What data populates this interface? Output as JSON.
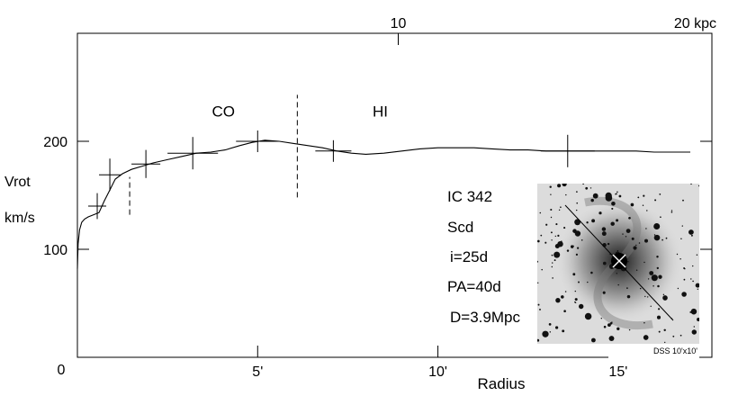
{
  "chart_data": {
    "type": "line",
    "xlabel": "Radius",
    "ylabel_lines": [
      "Vrot",
      "km/s"
    ],
    "origin_label": "0",
    "xlim": [
      0,
      17.6
    ],
    "ylim": [
      0,
      300
    ],
    "x_ticks": [
      {
        "value": 5,
        "label": "5'"
      },
      {
        "value": 10,
        "label": "10'"
      },
      {
        "value": 15,
        "label": "15'"
      }
    ],
    "y_ticks": [
      {
        "value": 100,
        "label": "100"
      },
      {
        "value": 200,
        "label": "200"
      }
    ],
    "top_axis_ticks": [
      {
        "value": 8.9,
        "label": "10"
      },
      {
        "value": 17.6,
        "label": "20 kpc"
      }
    ],
    "series": [
      {
        "x": [
          0.0,
          0.02,
          0.06,
          0.12,
          0.2,
          0.3,
          0.45,
          0.6,
          0.75,
          0.9,
          1.05,
          1.25,
          1.5,
          1.8,
          2.1,
          2.5,
          2.9,
          3.3,
          3.7,
          4.1,
          4.5,
          4.85,
          5.2,
          5.6,
          6.0,
          6.4,
          6.8,
          7.2,
          7.6,
          8.0,
          8.5,
          9.0,
          9.5,
          10.0,
          10.5,
          11.0,
          11.5,
          12.0,
          12.5,
          13.0,
          13.5,
          14.0,
          14.5,
          15.0,
          15.5,
          16.0,
          16.5,
          17.0
        ],
        "y": [
          82,
          105,
          118,
          125,
          128,
          130,
          132,
          134,
          145,
          155,
          165,
          170,
          174,
          177,
          180,
          183,
          186,
          189,
          190,
          192,
          196,
          199,
          201,
          200,
          198,
          196,
          194,
          191,
          189,
          188,
          189,
          191,
          193,
          194,
          194,
          194,
          193,
          192,
          192,
          191,
          191,
          191,
          191,
          191,
          191,
          190,
          190,
          190
        ]
      }
    ],
    "error_bars": [
      {
        "x": 0.55,
        "y": 140,
        "xerr": 0.25,
        "yerr": 12
      },
      {
        "x": 0.9,
        "y": 169,
        "xerr": 0.3,
        "yerr": 15
      },
      {
        "x": 1.9,
        "y": 179,
        "xerr": 0.4,
        "yerr": 13
      },
      {
        "x": 3.2,
        "y": 189,
        "xerr": 0.7,
        "yerr": 15
      },
      {
        "x": 5.0,
        "y": 200,
        "xerr": 0.6,
        "yerr": 10
      },
      {
        "x": 7.1,
        "y": 191,
        "xerr": 0.5,
        "yerr": 10
      },
      {
        "x": 13.6,
        "y": 191,
        "xerr": 0.75,
        "yerr": 15
      }
    ],
    "dashed_lines": [
      {
        "x": 1.45,
        "y0": 132,
        "y1": 167
      },
      {
        "x": 6.1,
        "y0": 148,
        "y1": 243
      }
    ],
    "annotations": [
      {
        "text": "CO",
        "x": 4.05,
        "y": 228
      },
      {
        "text": "HI",
        "x": 8.4,
        "y": 228
      }
    ],
    "info_lines": [
      "IC 342",
      "Scd",
      "i=25d",
      "PA=40d",
      "D=3.9Mpc"
    ],
    "inset_caption": "DSS 10'x10'"
  }
}
